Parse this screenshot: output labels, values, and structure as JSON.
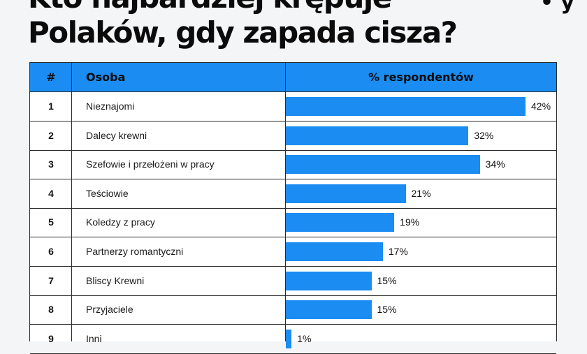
{
  "title": {
    "line1": "Kto najbardziej krępuje",
    "line2": "Polaków, gdy zapada cisza?"
  },
  "corner_mark": "• y ",
  "table": {
    "headers": {
      "num": "#",
      "person": "Osoba",
      "pct": "% respondentów"
    }
  },
  "chart_data": {
    "type": "bar",
    "orientation": "horizontal",
    "title": "Kto najbardziej krępuje Polaków, gdy zapada cisza?",
    "xlabel": "% respondentów",
    "ylabel": "Osoba",
    "unit": "%",
    "rows": [
      {
        "rank": "1",
        "label": "Nieznajomi",
        "value": 42,
        "display": "42%"
      },
      {
        "rank": "2",
        "label": "Dalecy krewni",
        "value": 32,
        "display": "32%"
      },
      {
        "rank": "3",
        "label": "Szefowie i przełożeni w pracy",
        "value": 34,
        "display": "34%"
      },
      {
        "rank": "4",
        "label": "Teściowie",
        "value": 21,
        "display": "21%"
      },
      {
        "rank": "5",
        "label": "Koledzy z pracy",
        "value": 19,
        "display": "19%"
      },
      {
        "rank": "6",
        "label": "Partnerzy romantyczni",
        "value": 17,
        "display": "17%"
      },
      {
        "rank": "7",
        "label": "Bliscy Krewni",
        "value": 15,
        "display": "15%"
      },
      {
        "rank": "8",
        "label": "Przyjaciele",
        "value": 15,
        "display": "15%"
      },
      {
        "rank": "9",
        "label": "Inni",
        "value": 1,
        "display": "1%"
      }
    ],
    "xlim": [
      0,
      42
    ],
    "bar_color": "#1a8cf2",
    "header_color": "#1a8cf2"
  }
}
